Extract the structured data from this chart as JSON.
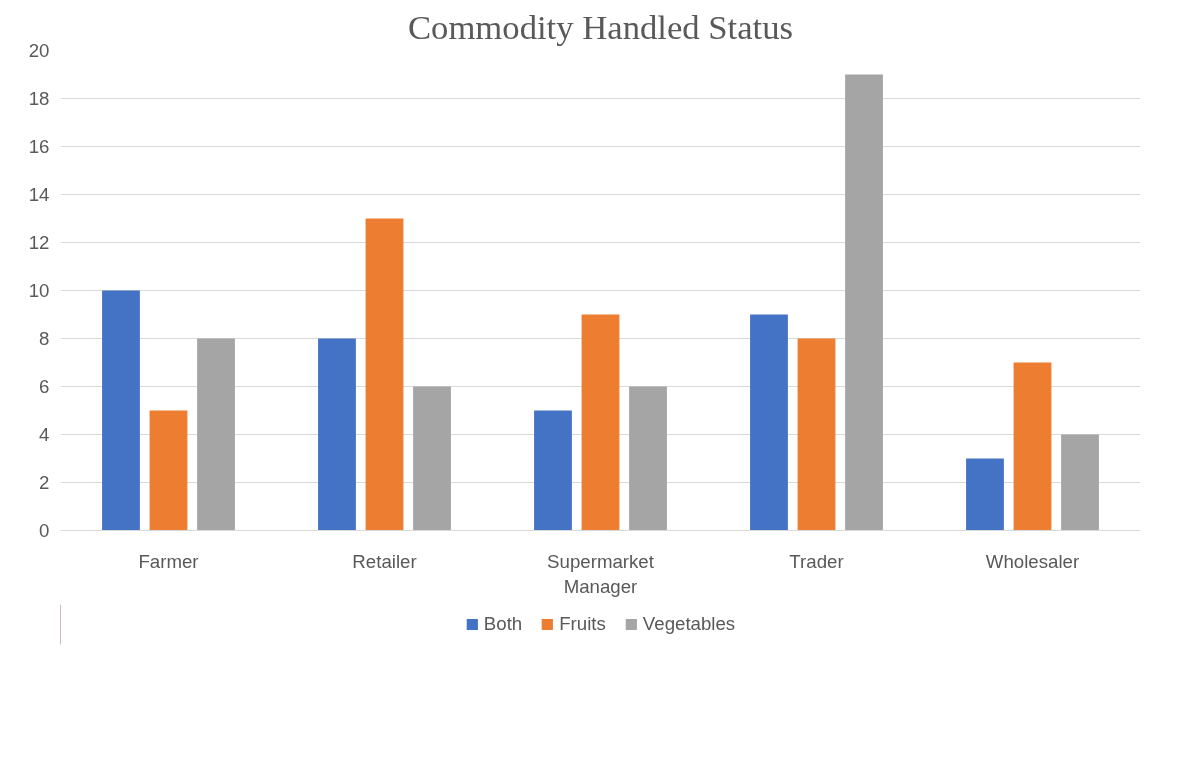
{
  "chart_data": {
    "type": "bar",
    "title": "Commodity Handled Status",
    "categories": [
      "Farmer",
      "Retailer",
      "Supermarket Manager",
      "Trader",
      "Wholesaler"
    ],
    "series": [
      {
        "name": "Both",
        "color": "#4472c4",
        "values": [
          10,
          8,
          5,
          9,
          3
        ]
      },
      {
        "name": "Fruits",
        "color": "#ed7d31",
        "values": [
          5,
          13,
          9,
          8,
          7
        ]
      },
      {
        "name": "Vegetables",
        "color": "#a5a5a5",
        "values": [
          8,
          6,
          6,
          19,
          4
        ]
      }
    ],
    "ylim": [
      0,
      20
    ],
    "yticks": [
      0,
      2,
      4,
      6,
      8,
      10,
      12,
      14,
      16,
      18,
      20
    ],
    "grid": "y",
    "legend": "bottom"
  }
}
